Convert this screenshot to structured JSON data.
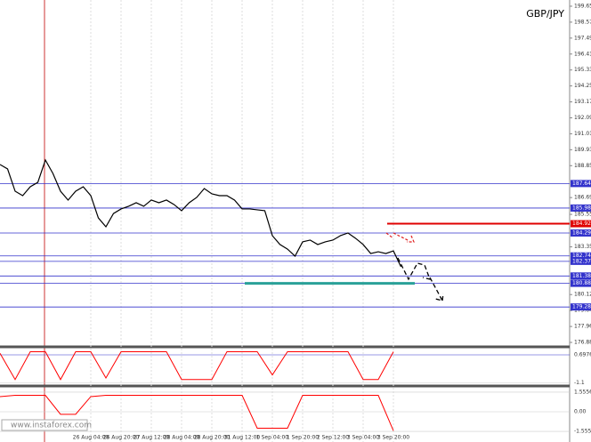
{
  "chart_data": {
    "type": "line",
    "title": "GBP/JPY",
    "watermark": "www.instaforex.com",
    "categories": [
      null,
      null,
      null,
      null,
      null,
      null,
      null,
      null,
      null,
      null,
      null,
      null,
      "26 Aug 04:00",
      null,
      null,
      null,
      "26 Aug 20:00",
      null,
      null,
      null,
      "27 Aug 12:00",
      null,
      null,
      null,
      "28 Aug 04:00",
      null,
      null,
      null,
      "28 Aug 20:00",
      null,
      null,
      null,
      "31 Aug 12:00",
      null,
      null,
      null,
      "1 Sep 04:00",
      null,
      null,
      null,
      "1 Sep 20:00",
      null,
      null,
      null,
      "2 Sep 12:00",
      null,
      null,
      null,
      "3 Sep 04:00",
      null,
      null,
      null,
      "3 Sep 20:00",
      null
    ],
    "series": [
      {
        "name": "GBP/JPY",
        "color": "#000000",
        "values": [
          188.93,
          188.63,
          187.12,
          186.82,
          187.42,
          187.72,
          189.23,
          188.32,
          187.12,
          186.52,
          187.12,
          187.42,
          186.82,
          185.31,
          184.71,
          185.61,
          185.92,
          186.1,
          186.34,
          186.1,
          186.52,
          186.34,
          186.52,
          186.22,
          185.8,
          186.34,
          186.7,
          187.3,
          186.94,
          186.82,
          186.82,
          186.52,
          185.92,
          185.92,
          185.86,
          185.8,
          184.11,
          183.51,
          183.2,
          182.72,
          183.69,
          183.81,
          183.51,
          183.69,
          183.81,
          184.11,
          184.29,
          183.93,
          183.51,
          182.9,
          183.02,
          182.9,
          183.08,
          182.0
        ]
      }
    ],
    "ylim": [
      176.58,
      200.07
    ],
    "yticks": [
      199.65,
      198.57,
      197.49,
      196.41,
      195.33,
      194.25,
      193.17,
      192.09,
      191.01,
      189.93,
      188.85,
      186.69,
      185.55,
      183.35,
      180.12,
      179.04,
      177.96,
      176.88
    ],
    "levels": [
      {
        "value": 187.64,
        "label": "187.64"
      },
      {
        "value": 185.98,
        "label": "185.98"
      },
      {
        "value": 184.92,
        "label": "184.92"
      },
      {
        "value": 184.29,
        "label": "184.29"
      },
      {
        "value": 182.74,
        "label": "182.74"
      },
      {
        "value": 182.37,
        "label": "182.37"
      },
      {
        "value": 181.38,
        "label": "181.38"
      },
      {
        "value": 180.88,
        "label": "180.88"
      },
      {
        "value": 179.28,
        "label": "179.28"
      }
    ],
    "indicators": [
      {
        "ylim": [
          -1.2,
          1.1
        ],
        "color": "#ff0000",
        "yticks": [
          0.6976,
          -1.1
        ],
        "values": [
          0.8,
          -0.9,
          0.9,
          0.9,
          -0.9,
          0.9,
          0.9,
          -0.8,
          0.9,
          0.9,
          0.9,
          0.9,
          -0.9,
          -0.9,
          -0.9,
          0.9,
          0.9,
          0.9,
          -0.6,
          0.9,
          0.9,
          0.9,
          0.9,
          0.9,
          -0.9,
          -0.9,
          0.9
        ]
      },
      {
        "ylim": [
          -1.9,
          1.9
        ],
        "color": "#ff0000",
        "yticks": [
          1.5556,
          {
            "value": 0,
            "label": "0.00"
          },
          -1.5556
        ],
        "values": [
          1.2,
          1.3,
          1.3,
          1.3,
          -0.2,
          -0.2,
          1.2,
          1.3,
          1.3,
          1.3,
          1.3,
          1.3,
          1.3,
          1.3,
          1.3,
          1.3,
          1.3,
          -1.3,
          -1.3,
          -1.3,
          1.3,
          1.3,
          1.3,
          1.3,
          1.3,
          1.3,
          -1.5
        ]
      }
    ]
  }
}
